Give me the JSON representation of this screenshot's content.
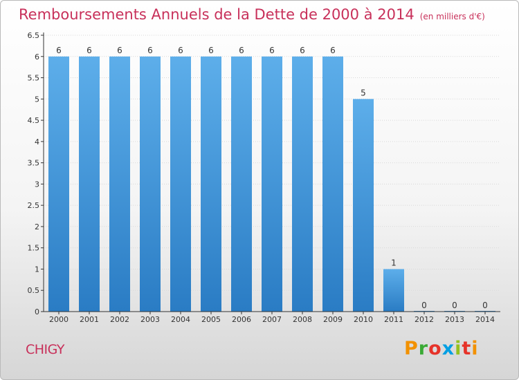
{
  "title": "Remboursements Annuels de la Dette de 2000 à 2014",
  "unit": "(en milliers d'€)",
  "commune": "CHIGY",
  "logo": {
    "letters": [
      "P",
      "r",
      "o",
      "x",
      "i",
      "t",
      "i"
    ],
    "colors": [
      "#f29100",
      "#3aaa35",
      "#e6332a",
      "#009fe3",
      "#95c11f",
      "#e6332a",
      "#f29100"
    ]
  },
  "colors": {
    "title": "#c8305a",
    "bar_top": "#5daeea",
    "bar_bottom": "#2a7cc4",
    "axis": "#333333",
    "grid": "#d8d8d8"
  },
  "chart_data": {
    "type": "bar",
    "title": "Remboursements Annuels de la Dette de 2000 à 2014",
    "subtitle": "(en milliers d'€)",
    "categories": [
      "2000",
      "2001",
      "2002",
      "2003",
      "2004",
      "2005",
      "2006",
      "2007",
      "2008",
      "2009",
      "2010",
      "2011",
      "2012",
      "2013",
      "2014"
    ],
    "values": [
      6,
      6,
      6,
      6,
      6,
      6,
      6,
      6,
      6,
      6,
      5,
      1,
      0,
      0,
      0
    ],
    "value_labels": [
      "6",
      "6",
      "6",
      "6",
      "6",
      "6",
      "6",
      "6",
      "6",
      "6",
      "5",
      "1",
      "0",
      "0",
      "0"
    ],
    "ylim": [
      0,
      6.5
    ],
    "yticks": [
      0,
      0.5,
      1,
      1.5,
      2,
      2.5,
      3,
      3.5,
      4,
      4.5,
      5,
      5.5,
      6,
      6.5
    ],
    "ytick_labels": [
      "0",
      "0.5",
      "1",
      "1.5",
      "2",
      "2.5",
      "3",
      "3.5",
      "4",
      "4.5",
      "5",
      "5.5",
      "6",
      "6.5"
    ],
    "xlabel": "",
    "ylabel": "",
    "grid": true,
    "legend": "none"
  }
}
